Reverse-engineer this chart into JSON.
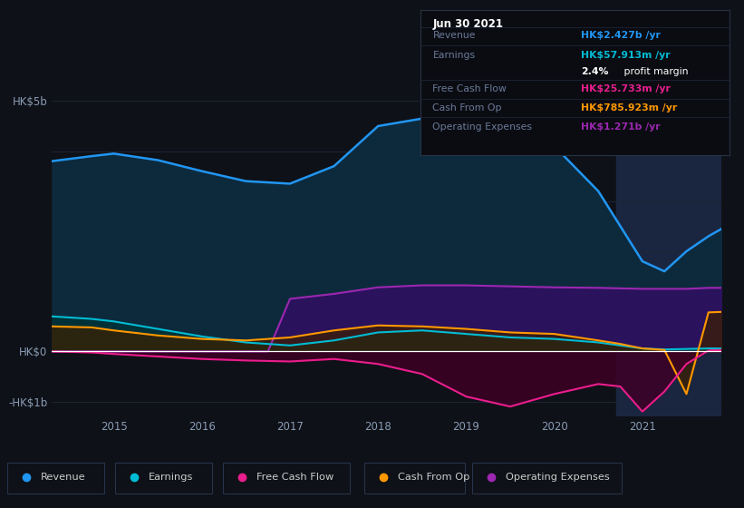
{
  "bg_color": "#0e1117",
  "plot_bg_color": "#0e1117",
  "grid_color": "#1e2535",
  "ylim": [
    -1300000000.0,
    5800000000.0
  ],
  "xlim": [
    2014.3,
    2021.9
  ],
  "xticks": [
    2015,
    2016,
    2017,
    2018,
    2019,
    2020,
    2021
  ],
  "highlight_color": "#1a2640",
  "legend_items": [
    {
      "label": "Revenue",
      "color": "#2196f3"
    },
    {
      "label": "Earnings",
      "color": "#00bcd4"
    },
    {
      "label": "Free Cash Flow",
      "color": "#e91e8c"
    },
    {
      "label": "Cash From Op",
      "color": "#ff9800"
    },
    {
      "label": "Operating Expenses",
      "color": "#9c27b0"
    }
  ],
  "tooltip": {
    "date": "Jun 30 2021",
    "revenue_val": "HK$2.427b",
    "revenue_color": "#2196f3",
    "earnings_val": "HK$57.913m",
    "earnings_color": "#00bcd4",
    "profit_margin": "2.4%",
    "fcf_val": "HK$25.733m",
    "fcf_color": "#e91e8c",
    "cfo_val": "HK$785.923m",
    "cfo_color": "#ff9800",
    "opex_val": "HK$1.271b",
    "opex_color": "#9c27b0"
  },
  "revenue_x": [
    2014.3,
    2014.75,
    2015.0,
    2015.5,
    2016.0,
    2016.5,
    2017.0,
    2017.5,
    2018.0,
    2018.5,
    2019.0,
    2019.5,
    2020.0,
    2020.5,
    2020.75,
    2021.0,
    2021.25,
    2021.5,
    2021.75,
    2021.9
  ],
  "revenue_y": [
    3800000000.0,
    3900000000.0,
    3950000000.0,
    3820000000.0,
    3600000000.0,
    3400000000.0,
    3350000000.0,
    3700000000.0,
    4500000000.0,
    4650000000.0,
    4500000000.0,
    4400000000.0,
    4100000000.0,
    3200000000.0,
    2500000000.0,
    1800000000.0,
    1600000000.0,
    2000000000.0,
    2300000000.0,
    2450000000.0
  ],
  "earnings_x": [
    2014.3,
    2014.75,
    2015.0,
    2015.5,
    2016.0,
    2016.5,
    2017.0,
    2017.5,
    2018.0,
    2018.5,
    2019.0,
    2019.5,
    2020.0,
    2020.5,
    2020.75,
    2021.0,
    2021.25,
    2021.5,
    2021.75,
    2021.9
  ],
  "earnings_y": [
    700000000.0,
    650000000.0,
    600000000.0,
    450000000.0,
    300000000.0,
    180000000.0,
    120000000.0,
    220000000.0,
    380000000.0,
    420000000.0,
    350000000.0,
    280000000.0,
    250000000.0,
    180000000.0,
    120000000.0,
    60000000.0,
    40000000.0,
    50000000.0,
    60000000.0,
    60000000.0
  ],
  "fcf_x": [
    2014.3,
    2014.75,
    2015.0,
    2015.5,
    2016.0,
    2016.5,
    2017.0,
    2017.5,
    2018.0,
    2018.5,
    2019.0,
    2019.5,
    2020.0,
    2020.5,
    2020.75,
    2021.0,
    2021.25,
    2021.5,
    2021.75,
    2021.9
  ],
  "fcf_y": [
    0.0,
    -20000000.0,
    -50000000.0,
    -100000000.0,
    -150000000.0,
    -180000000.0,
    -200000000.0,
    -150000000.0,
    -250000000.0,
    -450000000.0,
    -900000000.0,
    -1100000000.0,
    -850000000.0,
    -650000000.0,
    -700000000.0,
    -1200000000.0,
    -800000000.0,
    -250000000.0,
    20000000.0,
    30000000.0
  ],
  "cfo_x": [
    2014.3,
    2014.75,
    2015.0,
    2015.5,
    2016.0,
    2016.5,
    2017.0,
    2017.5,
    2018.0,
    2018.5,
    2019.0,
    2019.5,
    2020.0,
    2020.5,
    2020.75,
    2021.0,
    2021.25,
    2021.5,
    2021.75,
    2021.9
  ],
  "cfo_y": [
    500000000.0,
    480000000.0,
    420000000.0,
    320000000.0,
    250000000.0,
    220000000.0,
    280000000.0,
    420000000.0,
    520000000.0,
    500000000.0,
    450000000.0,
    380000000.0,
    350000000.0,
    220000000.0,
    150000000.0,
    60000000.0,
    30000000.0,
    -850000000.0,
    780000000.0,
    790000000.0
  ],
  "opex_x": [
    2014.3,
    2014.75,
    2015.0,
    2015.5,
    2016.0,
    2016.5,
    2016.75,
    2017.0,
    2017.5,
    2018.0,
    2018.5,
    2019.0,
    2019.5,
    2020.0,
    2020.5,
    2020.75,
    2021.0,
    2021.25,
    2021.5,
    2021.75,
    2021.9
  ],
  "opex_y": [
    0.0,
    0.0,
    0.0,
    0.0,
    0.0,
    0.0,
    0.0,
    1050000000.0,
    1150000000.0,
    1280000000.0,
    1320000000.0,
    1320000000.0,
    1300000000.0,
    1280000000.0,
    1270000000.0,
    1260000000.0,
    1250000000.0,
    1250000000.0,
    1250000000.0,
    1270000000.0,
    1270000000.0
  ]
}
